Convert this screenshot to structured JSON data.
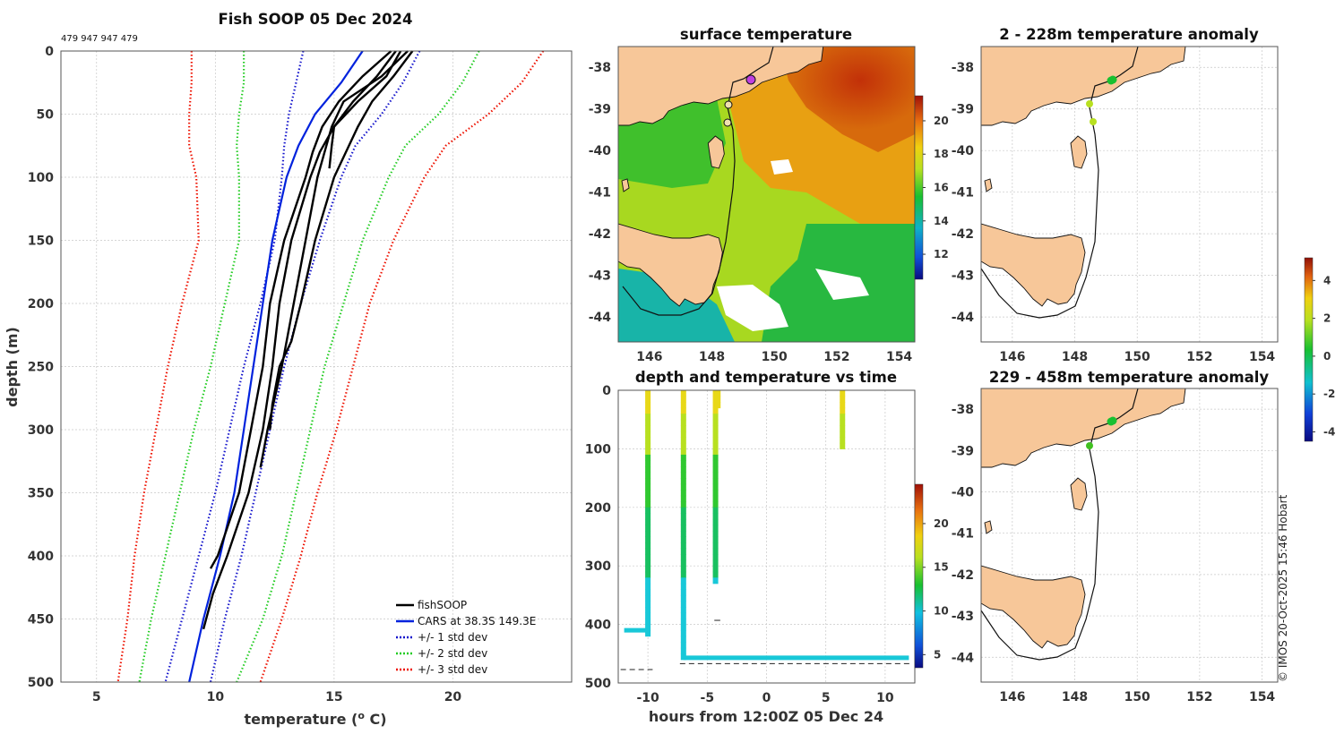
{
  "main_title": "Fish SOOP 05 Dec 2024",
  "wmo_ids": "479 947 947 479",
  "copyright": "© IMOS 20-Oct-2025 15:46 Hobart",
  "profile_plot": {
    "xlabel": "temperature (",
    "xlabel_sup": "o",
    "xlabel_end": " C)",
    "ylabel": "depth (m)",
    "xticks": [
      5,
      10,
      15,
      20
    ],
    "yticks": [
      0,
      50,
      100,
      150,
      200,
      250,
      300,
      350,
      400,
      450,
      500
    ],
    "xlim": [
      3.5,
      25
    ],
    "ylim": [
      0,
      500
    ],
    "legend": [
      {
        "label": "fishSOOP",
        "color": "#000000",
        "style": "solid"
      },
      {
        "label": "CARS at 38.3S 149.3E",
        "color": "#0022dd",
        "style": "solid"
      },
      {
        "label": "+/- 1 std dev",
        "color": "#1515cc",
        "style": "dotted"
      },
      {
        "label": "+/- 2 std dev",
        "color": "#22cc22",
        "style": "dotted"
      },
      {
        "label": "+/- 3 std dev",
        "color": "#ee1100",
        "style": "dotted"
      }
    ]
  },
  "sst_map": {
    "title": "surface temperature",
    "xticks": [
      146,
      148,
      150,
      152,
      154
    ],
    "yticks": [
      -38,
      -39,
      -40,
      -41,
      -42,
      -43,
      -44
    ],
    "colorbar_ticks": [
      12,
      14,
      16,
      18,
      20
    ]
  },
  "anom1": {
    "title": "2 - 228m temperature anomaly",
    "xticks": [
      146,
      148,
      150,
      152,
      154
    ],
    "yticks": [
      -38,
      -39,
      -40,
      -41,
      -42,
      -43,
      -44
    ]
  },
  "anom2": {
    "title": "229 - 458m temperature anomaly",
    "xticks": [
      146,
      148,
      150,
      152,
      154
    ],
    "yticks": [
      -38,
      -39,
      -40,
      -41,
      -42,
      -43,
      -44
    ]
  },
  "anom_colorbar_ticks": [
    4,
    2,
    0,
    -2,
    -4
  ],
  "time_plot": {
    "title": "depth and temperature vs time",
    "xlabel": "hours from 12:00Z 05 Dec 24",
    "xticks": [
      -10,
      -5,
      0,
      5,
      10
    ],
    "yticks": [
      0,
      100,
      200,
      300,
      400,
      500
    ],
    "colorbar_ticks": [
      5,
      10,
      15,
      20
    ]
  },
  "chart_data": {
    "type": "line",
    "title": "Fish SOOP 05 Dec 2024",
    "xlabel": "temperature (o C)",
    "ylabel": "depth (m)",
    "xlim": [
      3.5,
      25
    ],
    "ylim": [
      500,
      0
    ],
    "depths": [
      0,
      25,
      50,
      75,
      100,
      150,
      200,
      250,
      300,
      350,
      400,
      450,
      500
    ],
    "series": [
      {
        "name": "CARS at 38.3S 149.3E",
        "values": [
          16.2,
          15.3,
          14.2,
          13.5,
          13.0,
          12.4,
          12.0,
          11.6,
          11.2,
          10.8,
          10.2,
          9.5,
          8.9
        ]
      },
      {
        "name": "CARS -1 std",
        "values": [
          13.7,
          13.4,
          13.1,
          12.9,
          12.8,
          12.5,
          11.9,
          11.2,
          10.6,
          10.0,
          9.3,
          8.6,
          7.9
        ]
      },
      {
        "name": "CARS +1 std",
        "values": [
          18.6,
          17.9,
          17.0,
          15.9,
          15.3,
          14.4,
          13.6,
          12.9,
          12.3,
          11.7,
          11.1,
          10.4,
          9.8
        ]
      },
      {
        "name": "CARS -2 std",
        "values": [
          11.2,
          11.2,
          11.0,
          10.9,
          11.0,
          11.0,
          10.4,
          9.8,
          9.1,
          8.5,
          7.9,
          7.3,
          6.8
        ]
      },
      {
        "name": "CARS +2 std",
        "values": [
          21.1,
          20.4,
          19.4,
          18.0,
          17.3,
          16.2,
          15.4,
          14.6,
          14.0,
          13.4,
          12.8,
          12.0,
          10.9
        ]
      },
      {
        "name": "CARS -3 std",
        "values": [
          9.0,
          9.0,
          8.9,
          8.9,
          9.2,
          9.3,
          8.6,
          8.0,
          7.5,
          7.0,
          6.6,
          6.3,
          5.9
        ]
      },
      {
        "name": "CARS +3 std",
        "values": [
          23.8,
          22.9,
          21.5,
          19.7,
          18.8,
          17.5,
          16.5,
          15.8,
          15.1,
          14.3,
          13.6,
          12.8,
          11.9
        ]
      }
    ],
    "profiles": [
      {
        "name": "fishSOOP cast 1",
        "depth": [
          0,
          20,
          40,
          60,
          80,
          100,
          150,
          200,
          250,
          300,
          350,
          400,
          430,
          458
        ],
        "temp": [
          17.8,
          17.2,
          16.0,
          15.0,
          14.4,
          14.0,
          13.2,
          12.7,
          12.4,
          12.0,
          11.4,
          10.5,
          9.9,
          9.5
        ]
      },
      {
        "name": "fishSOOP cast 2",
        "depth": [
          0,
          20,
          40,
          60,
          80,
          100,
          150,
          200,
          250,
          300,
          330
        ],
        "temp": [
          18.1,
          17.0,
          15.4,
          14.9,
          14.6,
          14.3,
          13.8,
          13.3,
          12.8,
          12.2,
          11.9
        ]
      },
      {
        "name": "fishSOOP cast 3",
        "depth": [
          0,
          20,
          40,
          60,
          75,
          93
        ],
        "temp": [
          17.6,
          16.8,
          15.8,
          15.0,
          14.9,
          14.8
        ]
      },
      {
        "name": "fishSOOP cast 4",
        "depth": [
          0,
          20,
          40,
          60,
          100,
          150,
          200,
          230,
          250,
          280,
          300
        ],
        "temp": [
          18.3,
          17.5,
          16.6,
          16.0,
          15.0,
          14.2,
          13.6,
          13.2,
          12.7,
          12.4,
          12.3
        ]
      },
      {
        "name": "fishSOOP cast 5",
        "depth": [
          0,
          20,
          40,
          60,
          80,
          100,
          150,
          200,
          250,
          300,
          350,
          400,
          410
        ],
        "temp": [
          17.4,
          16.2,
          15.2,
          14.5,
          14.1,
          13.8,
          12.9,
          12.3,
          12.0,
          11.5,
          11.0,
          10.1,
          9.8
        ]
      }
    ]
  }
}
